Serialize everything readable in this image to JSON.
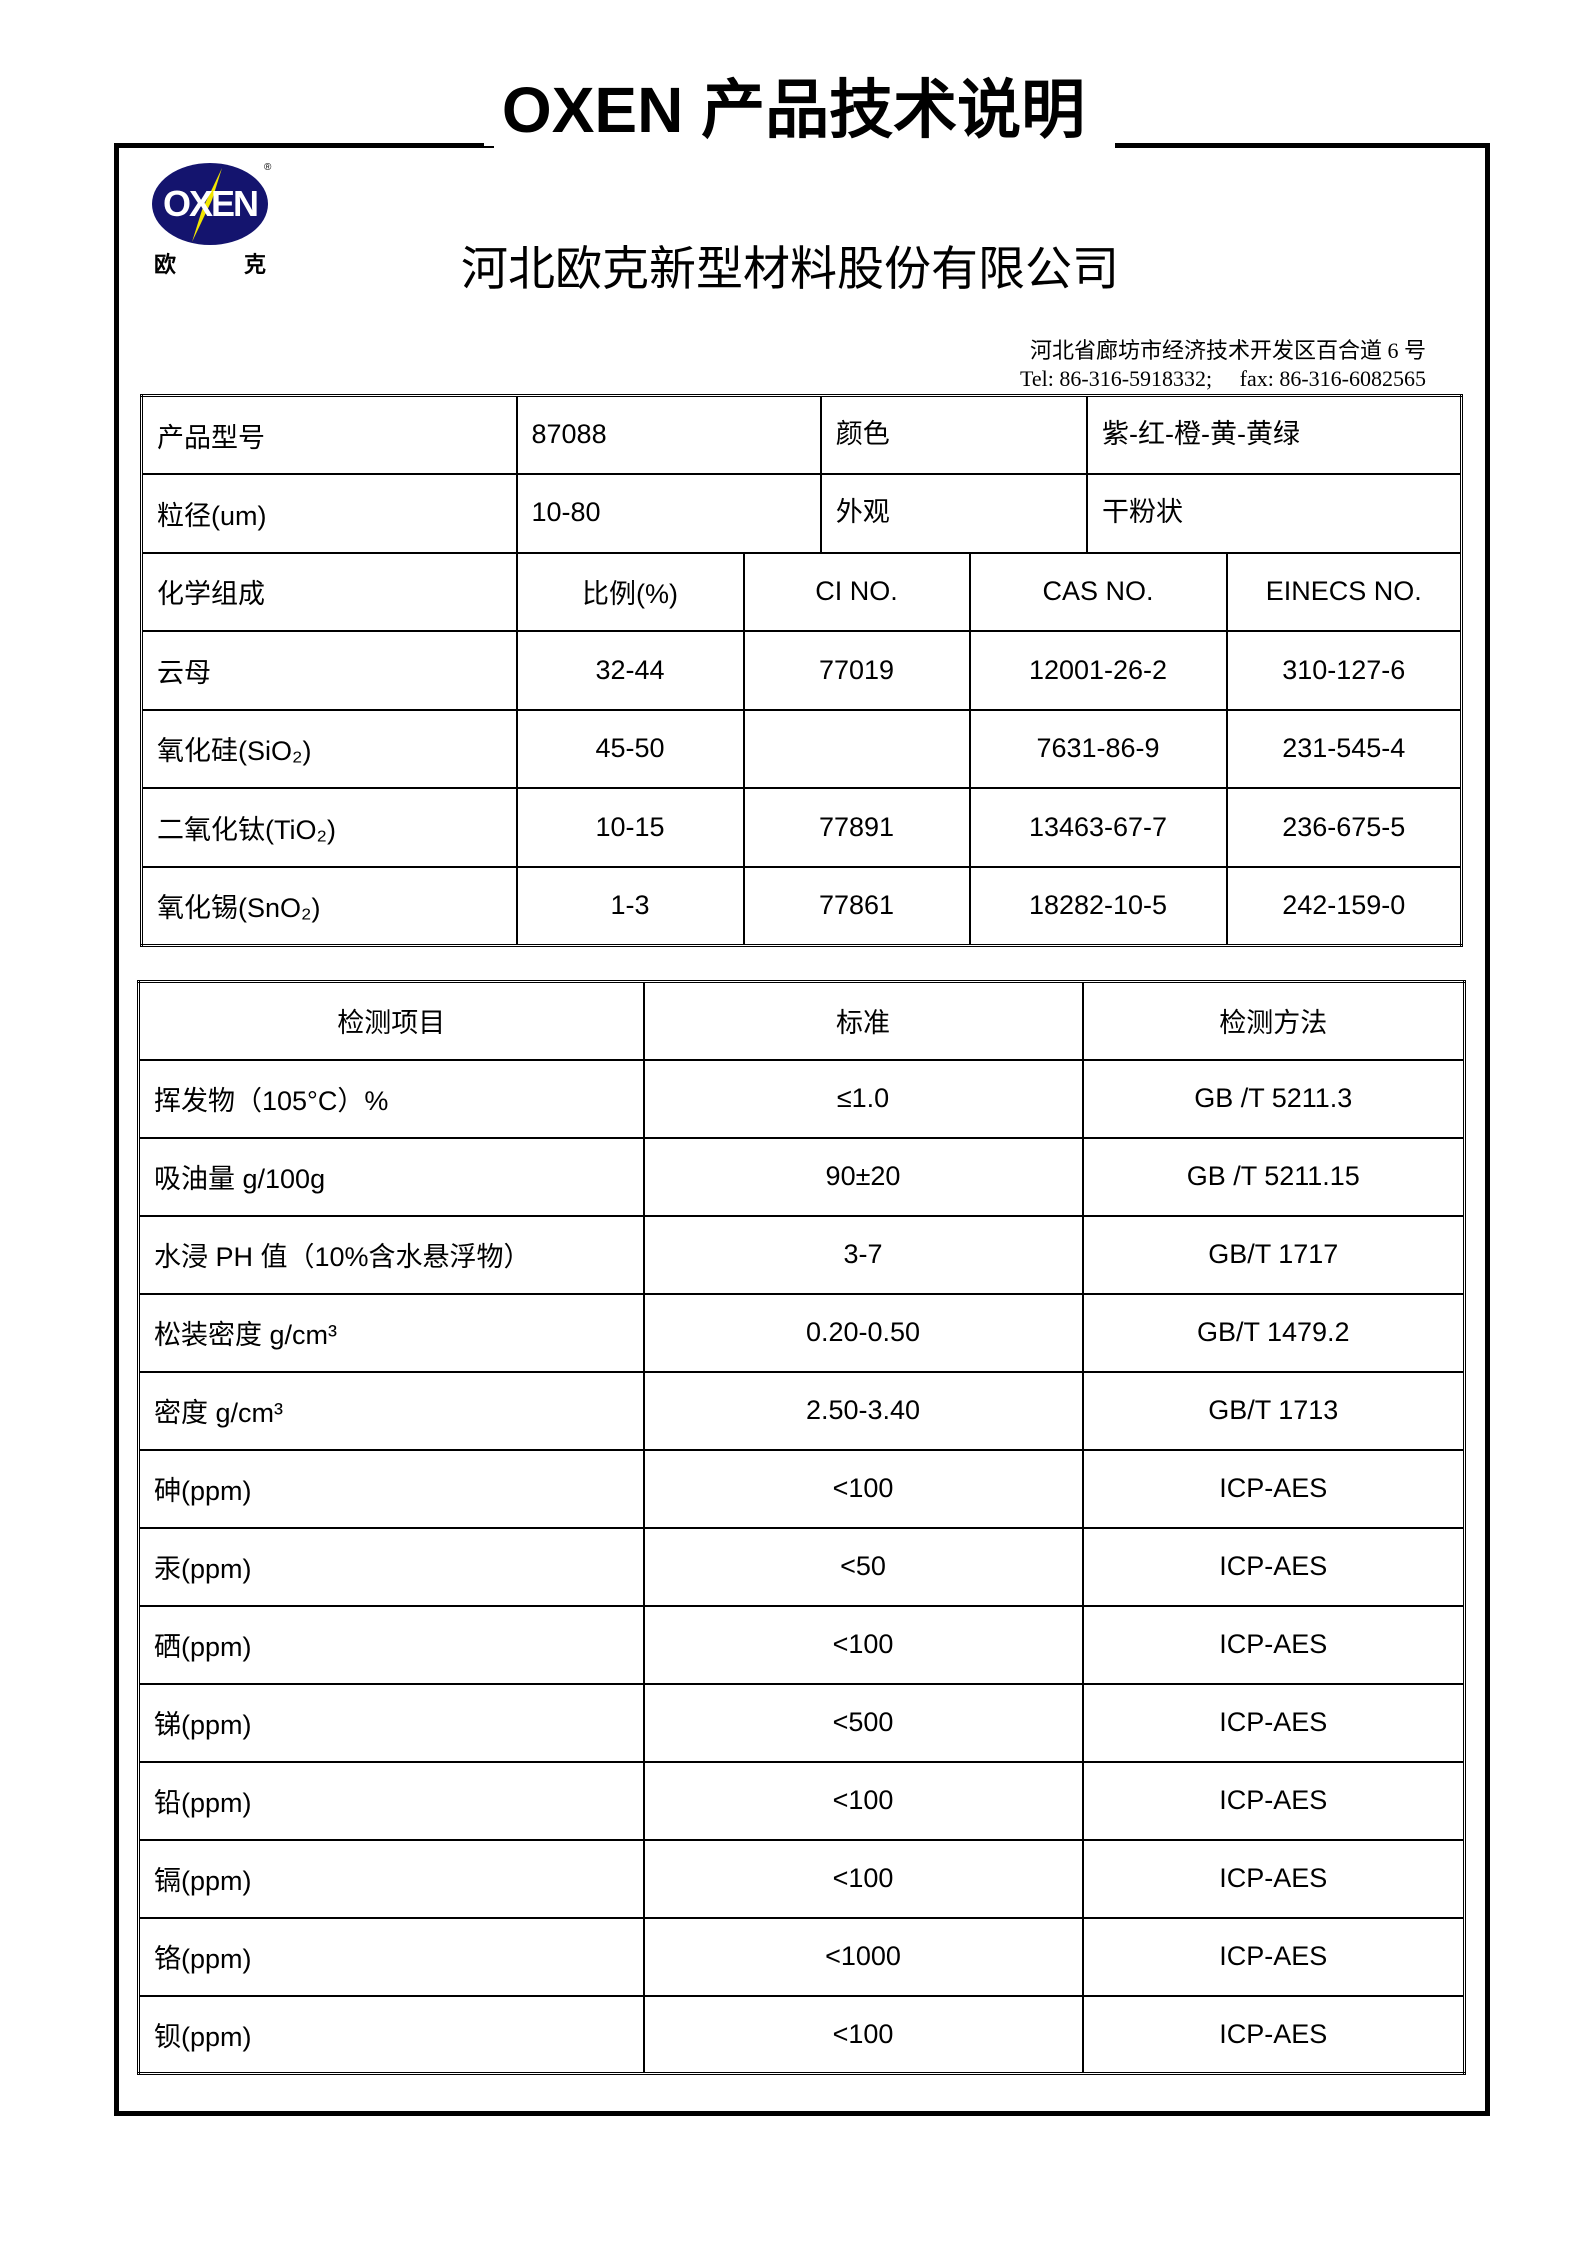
{
  "header": {
    "title": "OXEN 产品技术说明",
    "logo_text": "OXEN",
    "logo_cn_left": "欧",
    "logo_cn_right": "克",
    "company": "河北欧克新型材料股份有限公司",
    "address": "河北省廊坊市经济技术开发区百合道 6 号",
    "contact": "Tel: 86-316-5918332;     fax: 86-316-6082565",
    "brand_colors": {
      "navy": "#14146e",
      "yellow": "#f2e600"
    }
  },
  "info": [
    [
      "产品型号",
      "87088",
      "颜色",
      "紫-红-橙-黄-黄绿"
    ],
    [
      "粒径(um)",
      "10-80",
      "外观",
      "干粉状"
    ]
  ],
  "composition": {
    "headers": [
      "化学组成",
      "比例(%)",
      "CI NO.",
      "CAS NO.",
      "EINECS NO."
    ],
    "rows": [
      [
        "云母",
        "32-44",
        "77019",
        "12001-26-2",
        "310-127-6"
      ],
      [
        "氧化硅(SiO₂)",
        "45-50",
        "",
        "7631-86-9",
        "231-545-4"
      ],
      [
        "二氧化钛(TiO₂)",
        "10-15",
        "77891",
        "13463-67-7",
        "236-675-5"
      ],
      [
        "氧化锡(SnO₂)",
        "1-3",
        "77861",
        "18282-10-5",
        "242-159-0"
      ]
    ]
  },
  "tests": {
    "headers": [
      "检测项目",
      "标准",
      "检测方法"
    ],
    "rows": [
      [
        "挥发物（105°C）%",
        "≤1.0",
        "GB /T 5211.3"
      ],
      [
        "吸油量  g/100g",
        "90±20",
        "GB /T 5211.15"
      ],
      [
        "水浸 PH 值（10%含水悬浮物）",
        "3-7",
        "GB/T 1717"
      ],
      [
        "松装密度 g/cm³",
        "0.20-0.50",
        "GB/T 1479.2"
      ],
      [
        "密度 g/cm³",
        "2.50-3.40",
        "GB/T 1713"
      ],
      [
        "砷(ppm)",
        "<100",
        "ICP-AES"
      ],
      [
        "汞(ppm)",
        "<50",
        "ICP-AES"
      ],
      [
        "硒(ppm)",
        "<100",
        "ICP-AES"
      ],
      [
        "锑(ppm)",
        "<500",
        "ICP-AES"
      ],
      [
        "铅(ppm)",
        "<100",
        "ICP-AES"
      ],
      [
        "镉(ppm)",
        "<100",
        "ICP-AES"
      ],
      [
        "铬(ppm)",
        "<1000",
        "ICP-AES"
      ],
      [
        "钡(ppm)",
        "<100",
        "ICP-AES"
      ]
    ]
  }
}
